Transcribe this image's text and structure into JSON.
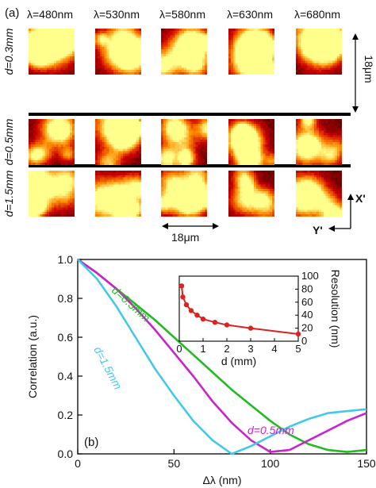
{
  "panel_a": {
    "label": "(a)",
    "wavelengths": [
      "λ=480nm",
      "λ=530nm",
      "λ=580nm",
      "λ=630nm",
      "λ=680nm"
    ],
    "rows": [
      "d=0.3mm",
      "d=0.5mm",
      "d=1.5mm"
    ],
    "scale_right": "18μm",
    "scale_bottom": "18μm",
    "axis_x": "X'",
    "axis_y": "Y'"
  },
  "chart_data": [
    {
      "type": "line",
      "panel_label": "(b)",
      "xlabel": "Δλ (nm)",
      "ylabel": "Correlation (a.u.)",
      "xlim": [
        0,
        150
      ],
      "ylim": [
        0,
        1.0
      ],
      "xticks": [
        0,
        50,
        100,
        150
      ],
      "yticks": [
        0.0,
        0.2,
        0.4,
        0.6,
        0.8,
        1.0
      ],
      "series": [
        {
          "name": "d=0.3mm",
          "color": "#22bb22",
          "x": [
            0,
            10,
            20,
            30,
            40,
            50,
            60,
            70,
            80,
            90,
            100,
            110,
            120,
            130,
            140,
            150
          ],
          "y": [
            1.0,
            0.93,
            0.85,
            0.77,
            0.69,
            0.6,
            0.51,
            0.42,
            0.33,
            0.25,
            0.17,
            0.1,
            0.05,
            0.02,
            0.01,
            0.02
          ]
        },
        {
          "name": "d=0.5mm",
          "color": "#cc22cc",
          "x": [
            0,
            10,
            20,
            30,
            40,
            50,
            60,
            70,
            80,
            90,
            100,
            110,
            120,
            130,
            140,
            150
          ],
          "y": [
            1.0,
            0.93,
            0.85,
            0.75,
            0.64,
            0.52,
            0.4,
            0.27,
            0.16,
            0.07,
            0.01,
            0.02,
            0.07,
            0.12,
            0.17,
            0.21
          ]
        },
        {
          "name": "d=1.5mm",
          "color": "#44c8e8",
          "x": [
            0,
            10,
            20,
            30,
            40,
            50,
            60,
            70,
            80,
            90,
            100,
            110,
            120,
            130,
            140,
            150
          ],
          "y": [
            1.0,
            0.9,
            0.76,
            0.6,
            0.44,
            0.3,
            0.17,
            0.07,
            0.0,
            0.04,
            0.09,
            0.14,
            0.18,
            0.21,
            0.22,
            0.23
          ]
        }
      ]
    },
    {
      "type": "scatter",
      "xlabel": "d (mm)",
      "ylabel": "Resolution (nm)",
      "xlim": [
        0,
        5
      ],
      "ylim": [
        0,
        100
      ],
      "xticks": [
        0,
        1,
        2,
        3,
        4,
        5
      ],
      "yticks": [
        0,
        20,
        40,
        60,
        80,
        100
      ],
      "series": [
        {
          "color": "#dd2222",
          "x": [
            0.1,
            0.15,
            0.3,
            0.5,
            0.75,
            1.0,
            1.5,
            2.0,
            3.0,
            5.0
          ],
          "y": [
            85,
            68,
            56,
            47,
            40,
            34,
            29,
            25,
            20,
            11
          ]
        }
      ]
    }
  ]
}
